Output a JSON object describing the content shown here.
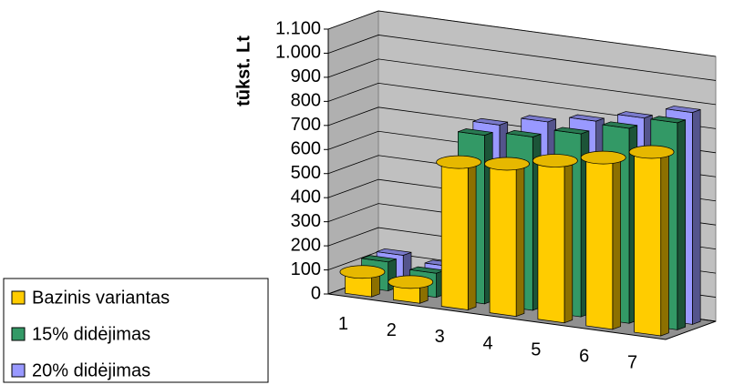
{
  "chart_data": {
    "type": "bar3d",
    "y_label": "tūkst. Lt",
    "categories": [
      "1",
      "2",
      "3",
      "4",
      "5",
      "6",
      "7"
    ],
    "series": [
      {
        "name": "Bazinis variantas",
        "color": "#ffcc00",
        "values": [
          90,
          75,
          600,
          620,
          660,
          700,
          750
        ]
      },
      {
        "name": "15% didėjimas",
        "color": "#339966",
        "values": [
          120,
          100,
          700,
          720,
          760,
          810,
          860
        ]
      },
      {
        "name": "20% didėjimas",
        "color": "#9999ff",
        "values": [
          125,
          105,
          720,
          760,
          790,
          830,
          880
        ]
      }
    ],
    "ylim": [
      0,
      1100
    ],
    "yticks": [
      0,
      100,
      200,
      300,
      400,
      500,
      600,
      700,
      800,
      900,
      {
        "value": 1000,
        "label": "1.000"
      },
      {
        "value": 1100,
        "label": "1.100"
      }
    ],
    "grid": true
  }
}
